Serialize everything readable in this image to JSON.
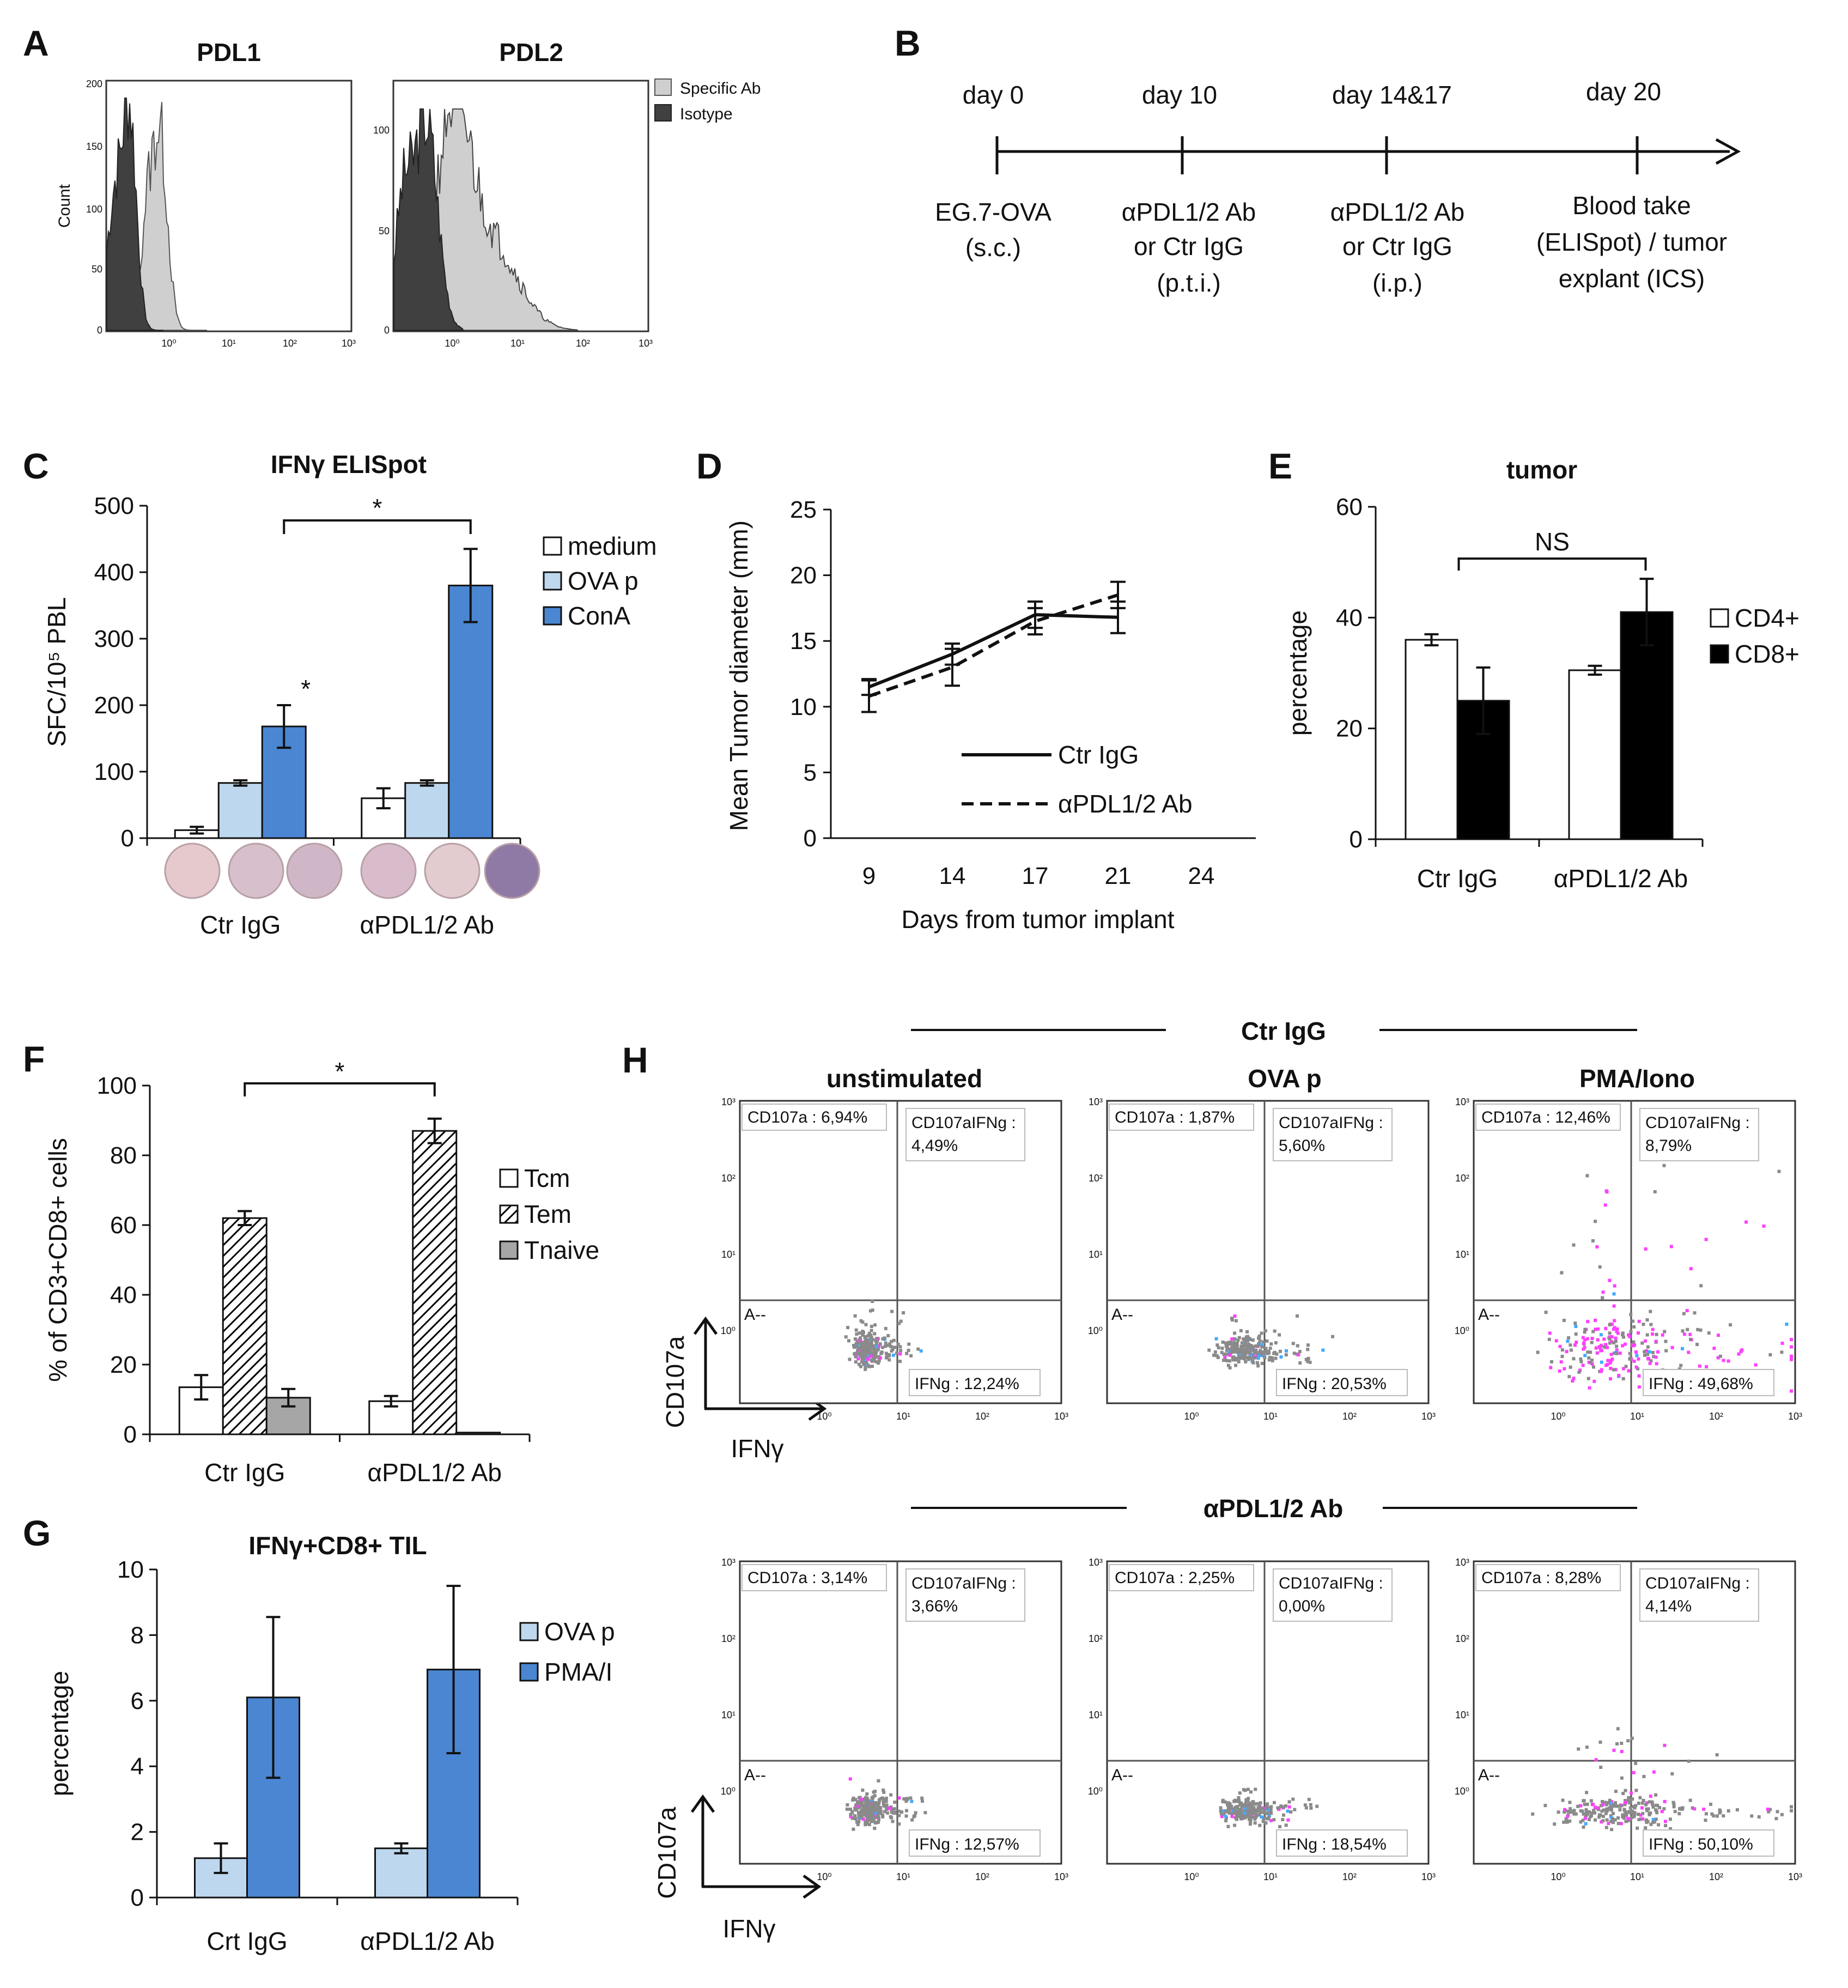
{
  "panels": {
    "A": {
      "letter": "A",
      "titles": [
        "PDL1",
        "PDL2"
      ],
      "ylabel": "Count",
      "pdl1_yticks": [
        "200",
        "150",
        "100",
        "50",
        "0"
      ],
      "pdl2_yticks": [
        "100",
        "50",
        "0"
      ],
      "xticks": [
        "10⁰",
        "10¹",
        "10²",
        "10³"
      ],
      "legend": [
        "Specific Ab",
        "Isotype"
      ],
      "colors": {
        "specific": "#cfcfcf",
        "isotype": "#404040"
      }
    },
    "B": {
      "letter": "B",
      "days": [
        "day 0",
        "day 10",
        "day 14&17",
        "day 20"
      ],
      "events": [
        [
          "EG.7-OVA",
          "(s.c.)"
        ],
        [
          "αPDL1/2 Ab",
          "or Ctr IgG",
          "(p.t.i.)"
        ],
        [
          "αPDL1/2 Ab",
          "or Ctr IgG",
          "(i.p.)"
        ],
        [
          "Blood take",
          "(ELISpot) / tumor",
          "explant (ICS)"
        ]
      ]
    },
    "H": {
      "letter": "H",
      "group_labels": [
        "Ctr IgG",
        "αPDL1/2 Ab"
      ],
      "column_titles": [
        "unstimulated",
        "OVA p",
        "PMA/Iono"
      ],
      "xlabel": "IFNγ",
      "ylabel": "CD107a",
      "gate_label": "A--",
      "axis_ticks": [
        "10⁰",
        "10¹",
        "10²",
        "10³"
      ],
      "dot_colors": [
        "#8a8a8a",
        "#ff40ff",
        "#44aaff"
      ],
      "plots": [
        {
          "cd107a": "CD107a : 6,94%",
          "double": [
            "CD107aIFNg :",
            "4,49%"
          ],
          "ifng": "IFNg : 12,24%"
        },
        {
          "cd107a": "CD107a : 1,87%",
          "double": [
            "CD107aIFNg :",
            "5,60%"
          ],
          "ifng": "IFNg : 20,53%"
        },
        {
          "cd107a": "CD107a : 12,46%",
          "double": [
            "CD107aIFNg :",
            "8,79%"
          ],
          "ifng": "IFNg : 49,68%"
        },
        {
          "cd107a": "CD107a : 3,14%",
          "double": [
            "CD107aIFNg :",
            "3,66%"
          ],
          "ifng": "IFNg : 12,57%"
        },
        {
          "cd107a": "CD107a : 2,25%",
          "double": [
            "CD107aIFNg :",
            "0,00%"
          ],
          "ifng": "IFNg : 18,54%"
        },
        {
          "cd107a": "CD107a : 8,28%",
          "double": [
            "CD107aIFNg :",
            "4,14%"
          ],
          "ifng": "IFNg : 50,10%"
        }
      ]
    }
  },
  "chart_data": [
    {
      "id": "C",
      "letter": "C",
      "type": "bar",
      "title": "IFNγ ELISpot",
      "ylabel": "SFC/10⁵ PBL",
      "xlabel": "",
      "ylim": [
        0,
        500
      ],
      "yticks": [
        0,
        100,
        200,
        300,
        400,
        500
      ],
      "categories": [
        "Ctr IgG",
        "αPDL1/2 Ab"
      ],
      "series": [
        {
          "name": "medium",
          "values": [
            12,
            60
          ],
          "errors": [
            5,
            15
          ],
          "color": "#ffffff"
        },
        {
          "name": "OVA p",
          "values": [
            83,
            83
          ],
          "errors": [
            4,
            4
          ],
          "color": "#bdd7ee"
        },
        {
          "name": "ConA",
          "values": [
            168,
            380
          ],
          "errors": [
            32,
            55
          ],
          "color": "#4a86d2"
        }
      ],
      "annotations": [
        "*",
        "*"
      ],
      "well_colors": [
        "#e6c9cc",
        "#d7bfcc",
        "#cfb7c7",
        "#d9bccb",
        "#e3ccd0",
        "#8f7aa6"
      ]
    },
    {
      "id": "D",
      "letter": "D",
      "type": "line",
      "title": "",
      "xlabel": "Days from tumor implant",
      "ylabel": "Mean Tumor diameter (mm)",
      "ylim": [
        0,
        25
      ],
      "yticks": [
        0,
        5,
        10,
        15,
        20,
        25
      ],
      "xticks": [
        9,
        14,
        17,
        21,
        24
      ],
      "series": [
        {
          "name": "Ctr IgG",
          "style": "solid",
          "x": [
            9,
            14,
            17,
            21
          ],
          "values": [
            11.5,
            14.0,
            17.0,
            16.8
          ],
          "errors": [
            0.6,
            0.8,
            1.0,
            1.2
          ]
        },
        {
          "name": "αPDL1/2 Ab",
          "style": "dashed",
          "x": [
            9,
            14,
            17,
            21
          ],
          "values": [
            10.8,
            13.0,
            16.5,
            18.5
          ],
          "errors": [
            1.2,
            1.4,
            1.0,
            1.0
          ]
        }
      ]
    },
    {
      "id": "E",
      "letter": "E",
      "type": "bar",
      "title": "tumor",
      "ylabel": "percentage",
      "xlabel": "",
      "ylim": [
        0,
        60
      ],
      "yticks": [
        0,
        20,
        40,
        60
      ],
      "categories": [
        "Ctr IgG",
        "αPDL1/2 Ab"
      ],
      "series": [
        {
          "name": "CD4+",
          "values": [
            36,
            30.5
          ],
          "errors": [
            1,
            0.8
          ],
          "color": "#ffffff"
        },
        {
          "name": "CD8+",
          "values": [
            25,
            41
          ],
          "errors": [
            6,
            6
          ],
          "color": "#000000"
        }
      ],
      "annotations": [
        "NS"
      ]
    },
    {
      "id": "F",
      "letter": "F",
      "type": "bar",
      "title": "",
      "ylabel": "% of CD3+CD8+ cells",
      "xlabel": "",
      "ylim": [
        0,
        100
      ],
      "yticks": [
        0,
        20,
        40,
        60,
        80,
        100
      ],
      "categories": [
        "Ctr IgG",
        "αPDL1/2 Ab"
      ],
      "series": [
        {
          "name": "Tcm",
          "values": [
            13.5,
            9.5
          ],
          "errors": [
            3.5,
            1.5
          ],
          "color": "#ffffff"
        },
        {
          "name": "Tem",
          "values": [
            62,
            87
          ],
          "errors": [
            2,
            3.5
          ],
          "color": "hatch"
        },
        {
          "name": "Tnaive",
          "values": [
            10.5,
            0.5
          ],
          "errors": [
            2.5,
            0
          ],
          "color": "#a6a6a6"
        }
      ],
      "annotations": [
        "*"
      ]
    },
    {
      "id": "G",
      "letter": "G",
      "type": "bar",
      "title": "IFNγ+CD8+ TIL",
      "ylabel": "percentage",
      "xlabel": "",
      "ylim": [
        0,
        10
      ],
      "yticks": [
        0,
        2,
        4,
        6,
        8,
        10
      ],
      "categories": [
        "Crt IgG",
        "αPDL1/2 Ab"
      ],
      "series": [
        {
          "name": "OVA p",
          "values": [
            1.2,
            1.5
          ],
          "errors": [
            0.45,
            0.15
          ],
          "color": "#bdd7ee"
        },
        {
          "name": "PMA/I",
          "values": [
            6.1,
            6.95
          ],
          "errors": [
            2.45,
            2.55
          ],
          "color": "#4a86d2"
        }
      ]
    }
  ]
}
